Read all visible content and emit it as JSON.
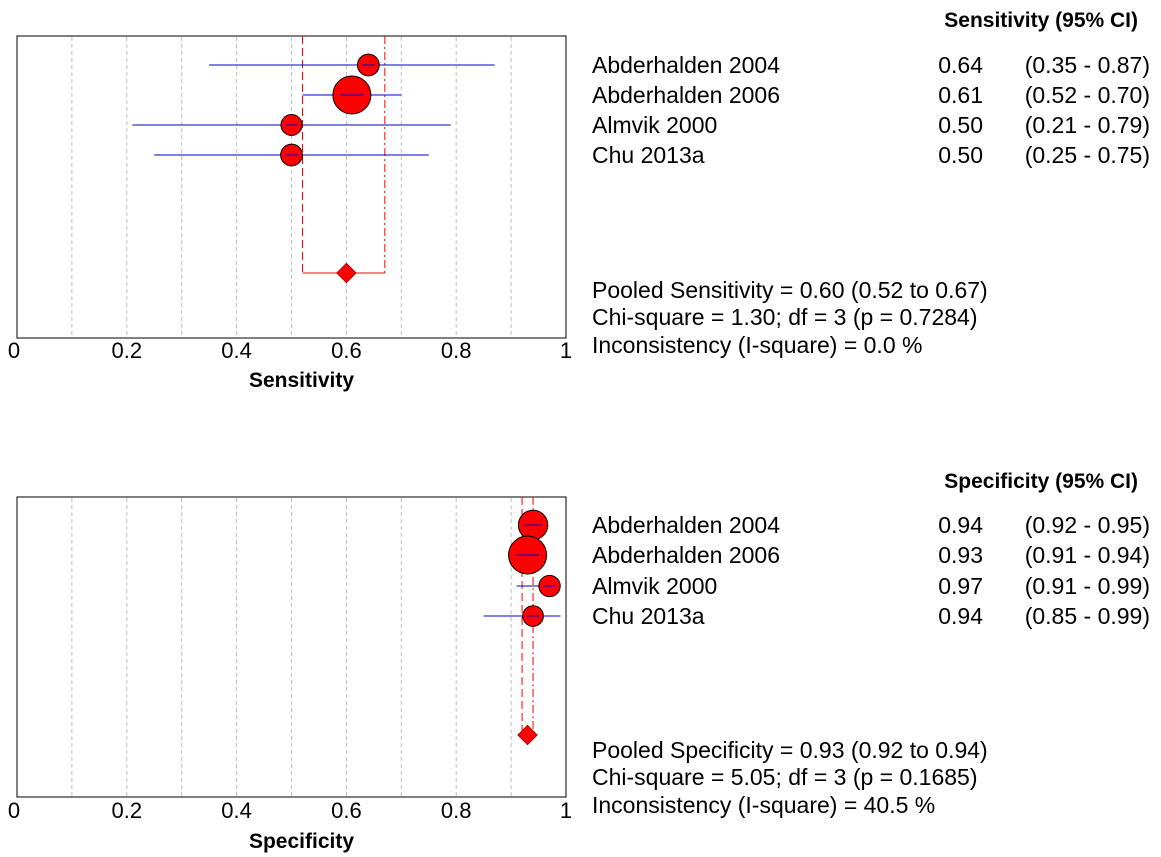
{
  "colors": {
    "point": "#ff0000",
    "ci_line": "#0000cc",
    "pooled_line": "#ff0000",
    "grid": "#bfbfbf",
    "frame": "#000000"
  },
  "chart_data": [
    {
      "type": "forest",
      "xlabel": "Sensitivity",
      "xlim": [
        0,
        1
      ],
      "xticks": [
        "0",
        "0.2",
        "0.4",
        "0.6",
        "0.8",
        "1"
      ],
      "grid": true,
      "column_header": "Sensitivity (95% CI)",
      "studies": [
        {
          "name": "Abderhalden 2004",
          "value": 0.64,
          "lo": 0.35,
          "hi": 0.87,
          "value_text": "0.64",
          "ci_text": "(0.35 - 0.87)",
          "weight": 14
        },
        {
          "name": "Abderhalden 2006",
          "value": 0.61,
          "lo": 0.52,
          "hi": 0.7,
          "value_text": "0.61",
          "ci_text": "(0.52 - 0.70)",
          "weight": 100
        },
        {
          "name": "Almvik 2000",
          "value": 0.5,
          "lo": 0.21,
          "hi": 0.79,
          "value_text": "0.50",
          "ci_text": "(0.21 - 0.79)",
          "weight": 12
        },
        {
          "name": "Chu 2013a",
          "value": 0.5,
          "lo": 0.25,
          "hi": 0.75,
          "value_text": "0.50",
          "ci_text": "(0.25 - 0.75)",
          "weight": 14
        }
      ],
      "pooled": {
        "value": 0.6,
        "lo": 0.52,
        "hi": 0.67
      },
      "summary": [
        "Pooled Sensitivity = 0.60 (0.52 to 0.67)",
        "Chi-square = 1.30; df =  3 (p = 0.7284)",
        "Inconsistency (I-square) = 0.0 %"
      ]
    },
    {
      "type": "forest",
      "xlabel": "Specificity",
      "xlim": [
        0,
        1
      ],
      "xticks": [
        "0",
        "0.2",
        "0.4",
        "0.6",
        "0.8",
        "1"
      ],
      "grid": true,
      "column_header": "Specificity (95% CI)",
      "studies": [
        {
          "name": "Abderhalden 2004",
          "value": 0.94,
          "lo": 0.92,
          "hi": 0.95,
          "value_text": "0.94",
          "ci_text": "(0.92 - 0.95)",
          "weight": 45
        },
        {
          "name": "Abderhalden 2006",
          "value": 0.93,
          "lo": 0.91,
          "hi": 0.94,
          "value_text": "0.93",
          "ci_text": "(0.91 - 0.94)",
          "weight": 100
        },
        {
          "name": "Almvik 2000",
          "value": 0.97,
          "lo": 0.91,
          "hi": 0.99,
          "value_text": "0.97",
          "ci_text": "(0.91 - 0.99)",
          "weight": 13
        },
        {
          "name": "Chu 2013a",
          "value": 0.94,
          "lo": 0.85,
          "hi": 0.99,
          "value_text": "0.94",
          "ci_text": "(0.85 - 0.99)",
          "weight": 11
        }
      ],
      "pooled": {
        "value": 0.93,
        "lo": 0.92,
        "hi": 0.94
      },
      "summary": [
        "Pooled Specificity = 0.93 (0.92 to 0.94)",
        "Chi-square = 5.05; df =  3 (p = 0.1685)",
        "Inconsistency (I-square) = 40.5 %"
      ]
    }
  ]
}
